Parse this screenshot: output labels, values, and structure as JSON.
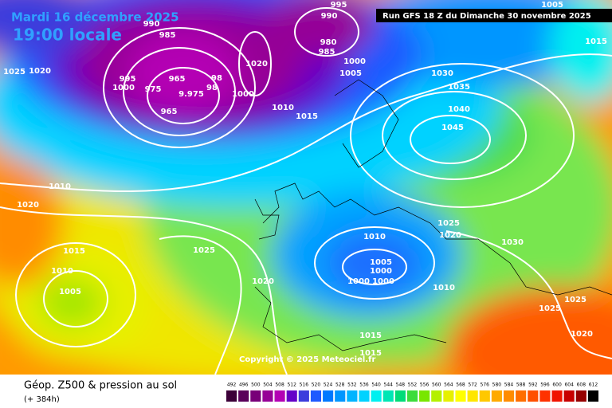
{
  "header": {
    "date": "Mardi 16 décembre 2025",
    "time": "19:00 locale",
    "run": "Run GFS 18 Z du Dimanche 30 novembre 2025"
  },
  "copyright": "Copyright © 2025 Meteociel.fr",
  "footer": {
    "title": "Géop. Z500 & pression au sol",
    "lead": "(+ 384h)"
  },
  "isobar_labels": [
    "990",
    "985",
    "995",
    "990",
    "980",
    "985",
    "1025",
    "1020",
    "995",
    "1000",
    "975",
    "965",
    "98",
    "9.975",
    "98",
    "965",
    "1020",
    "1000",
    "1005",
    "1000",
    "1030",
    "1035",
    "1040",
    "1045",
    "1010",
    "1015",
    "1005",
    "1015",
    "1010",
    "1020",
    "1015",
    "1025",
    "1010",
    "1005",
    "1020",
    "1010",
    "1025",
    "1020",
    "1030",
    "1005",
    "1000",
    "1000",
    "1000",
    "1010",
    "1025",
    "1025",
    "1020",
    "1015",
    "1015"
  ],
  "scale": {
    "labels": [
      492,
      496,
      500,
      504,
      508,
      512,
      516,
      520,
      524,
      528,
      532,
      536,
      540,
      544,
      548,
      552,
      556,
      560,
      564,
      568,
      572,
      576,
      580,
      584,
      588,
      592,
      596,
      600,
      604,
      608,
      612
    ],
    "colors": [
      "#3c0038",
      "#5a005a",
      "#780078",
      "#960096",
      "#b400b4",
      "#6400c8",
      "#3c3cdc",
      "#1e5aff",
      "#0078ff",
      "#0096ff",
      "#00b4ff",
      "#00d2ff",
      "#00f0f0",
      "#00e6b4",
      "#00dc78",
      "#3cdc3c",
      "#78e600",
      "#b4f000",
      "#e6f000",
      "#ffff00",
      "#ffe600",
      "#ffc800",
      "#ffaa00",
      "#ff8c00",
      "#ff6e00",
      "#ff5000",
      "#ff3200",
      "#f01400",
      "#c80000",
      "#960000",
      "#000000"
    ]
  }
}
